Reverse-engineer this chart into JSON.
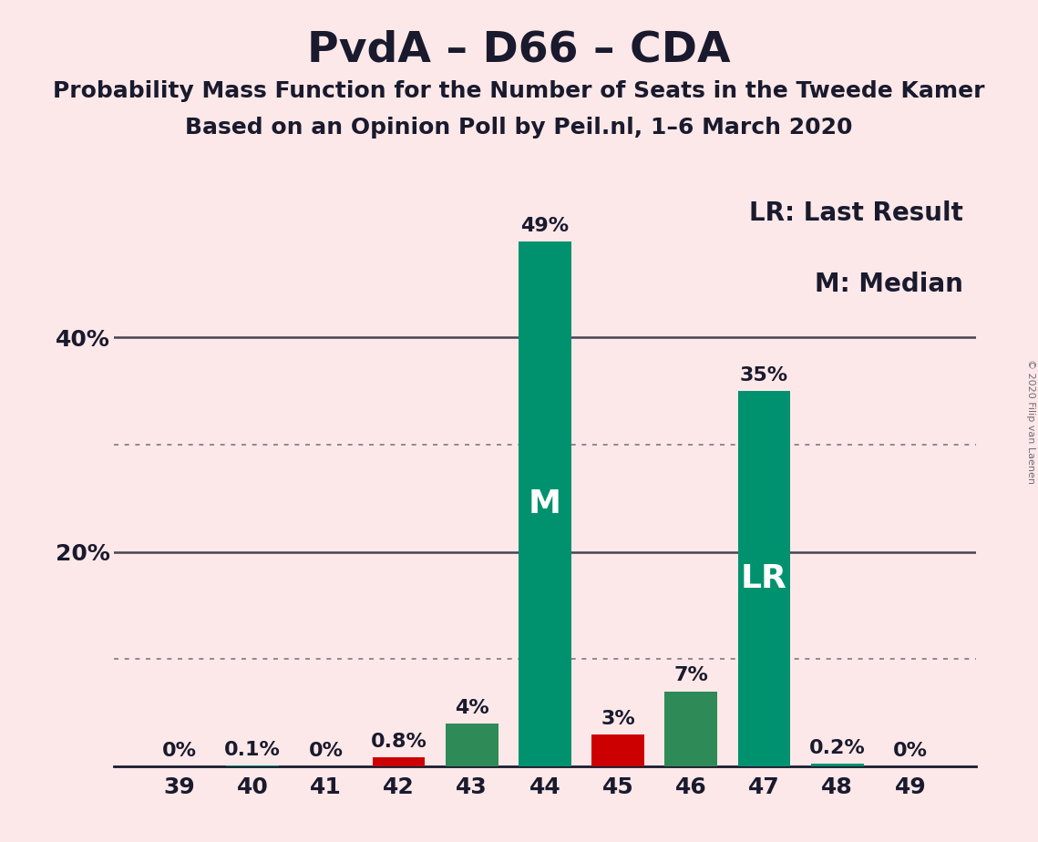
{
  "title": "PvdA – D66 – CDA",
  "subtitle1": "Probability Mass Function for the Number of Seats in the Tweede Kamer",
  "subtitle2": "Based on an Opinion Poll by Peil.nl, 1–6 March 2020",
  "copyright": "© 2020 Filip van Laenen",
  "categories": [
    39,
    40,
    41,
    42,
    43,
    44,
    45,
    46,
    47,
    48,
    49
  ],
  "values": [
    0.0,
    0.1,
    0.0,
    0.8,
    4.0,
    49.0,
    3.0,
    7.0,
    35.0,
    0.2,
    0.0
  ],
  "label_texts": [
    "0%",
    "0.1%",
    "0%",
    "0.8%",
    "4%",
    "49%",
    "3%",
    "7%",
    "35%",
    "0.2%",
    "0%"
  ],
  "bar_colors": [
    "#00916E",
    "#00916E",
    "#00916E",
    "#cc0000",
    "#2E8B57",
    "#00916E",
    "#cc0000",
    "#2E8B57",
    "#00916E",
    "#00916E",
    "#00916E"
  ],
  "median_bar": 44,
  "last_result_bar": 47,
  "median_label": "M",
  "last_result_label": "LR",
  "legend_lr": "LR: Last Result",
  "legend_m": "M: Median",
  "background_color": "#fce8e8",
  "bar_teal": "#00916E",
  "bar_green": "#2E8B57",
  "bar_red": "#cc0000",
  "text_color": "#1a1a2e",
  "ylim": [
    0,
    55
  ],
  "ytick_shown": [
    20,
    40
  ],
  "dotted_yticks": [
    10,
    30
  ],
  "solid_yticks": [
    20,
    40
  ],
  "title_fontsize": 34,
  "subtitle_fontsize": 18,
  "label_fontsize": 16,
  "tick_fontsize": 18,
  "inside_label_fontsize": 26,
  "annotation_fontsize": 20
}
